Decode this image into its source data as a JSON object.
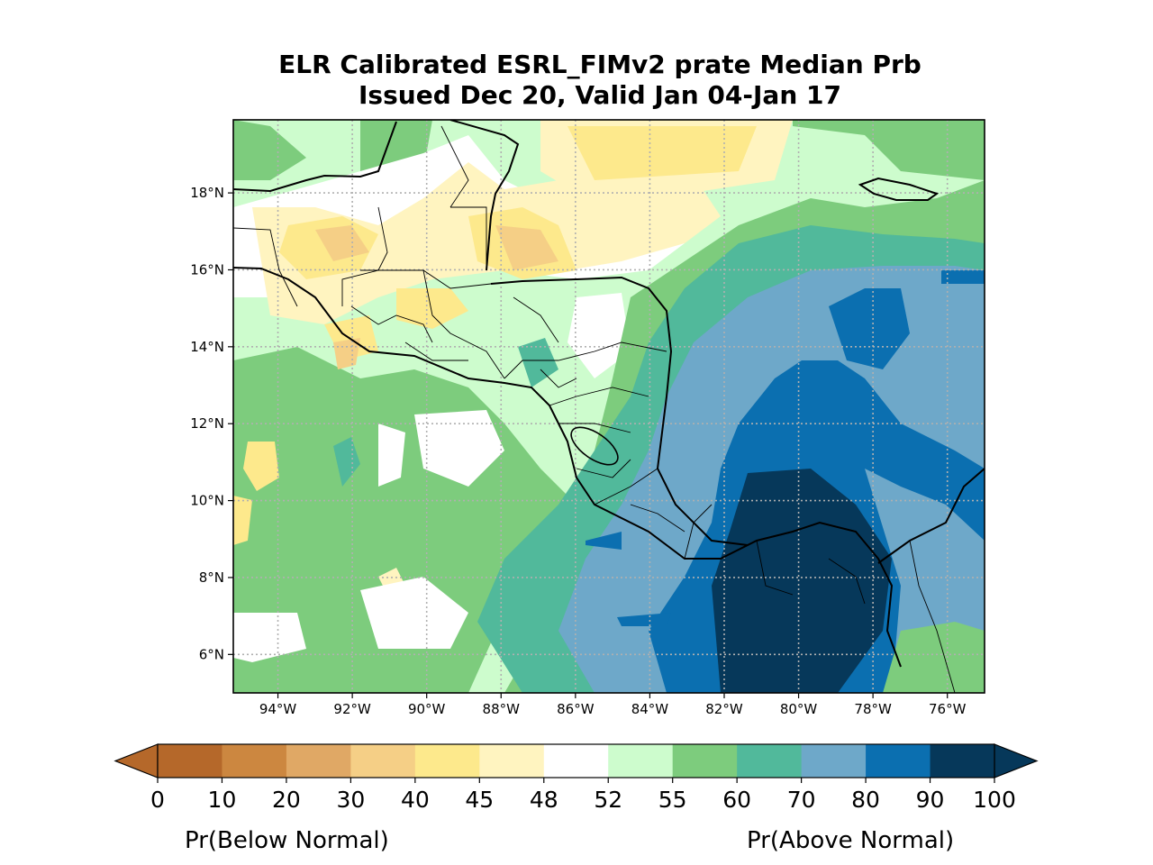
{
  "title": {
    "line1": "ELR Calibrated ESRL_FIMv2 prate Median Prb",
    "line2": "Issued Dec 20, Valid Jan 04-Jan 17"
  },
  "map": {
    "lon_range": [
      -95.2,
      -75.0
    ],
    "lat_range": [
      5.0,
      19.9
    ],
    "lon_ticks": [
      "94°W",
      "92°W",
      "90°W",
      "88°W",
      "86°W",
      "84°W",
      "82°W",
      "80°W",
      "78°W",
      "76°W"
    ],
    "lat_ticks": [
      "6°N",
      "8°N",
      "10°N",
      "12°N",
      "14°N",
      "16°N",
      "18°N"
    ],
    "grid": "dotted"
  },
  "colorbar": {
    "ticks": [
      "0",
      "10",
      "20",
      "30",
      "40",
      "45",
      "48",
      "52",
      "55",
      "60",
      "70",
      "80",
      "90",
      "100"
    ],
    "colors": [
      "#b5682a",
      "#cc8740",
      "#e0a865",
      "#f5cf86",
      "#fde98c",
      "#fff4c0",
      "#ffffff",
      "#cdfccd",
      "#7dcc7d",
      "#51b99b",
      "#6ea8c9",
      "#0b6fb0",
      "#06385a"
    ],
    "extend": "both",
    "label_left": "Pr(Below Normal)",
    "label_right": "Pr(Above Normal)"
  }
}
